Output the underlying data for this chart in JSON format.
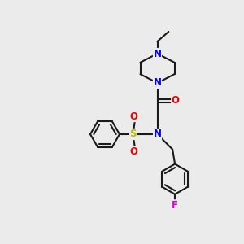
{
  "background_color": "#ebebeb",
  "bond_color": "#1a1a1a",
  "atom_colors": {
    "N": "#0000ee",
    "O": "#ee0000",
    "S": "#bbbb00",
    "F": "#dd00dd"
  },
  "figsize": [
    3.0,
    3.0
  ],
  "dpi": 100
}
